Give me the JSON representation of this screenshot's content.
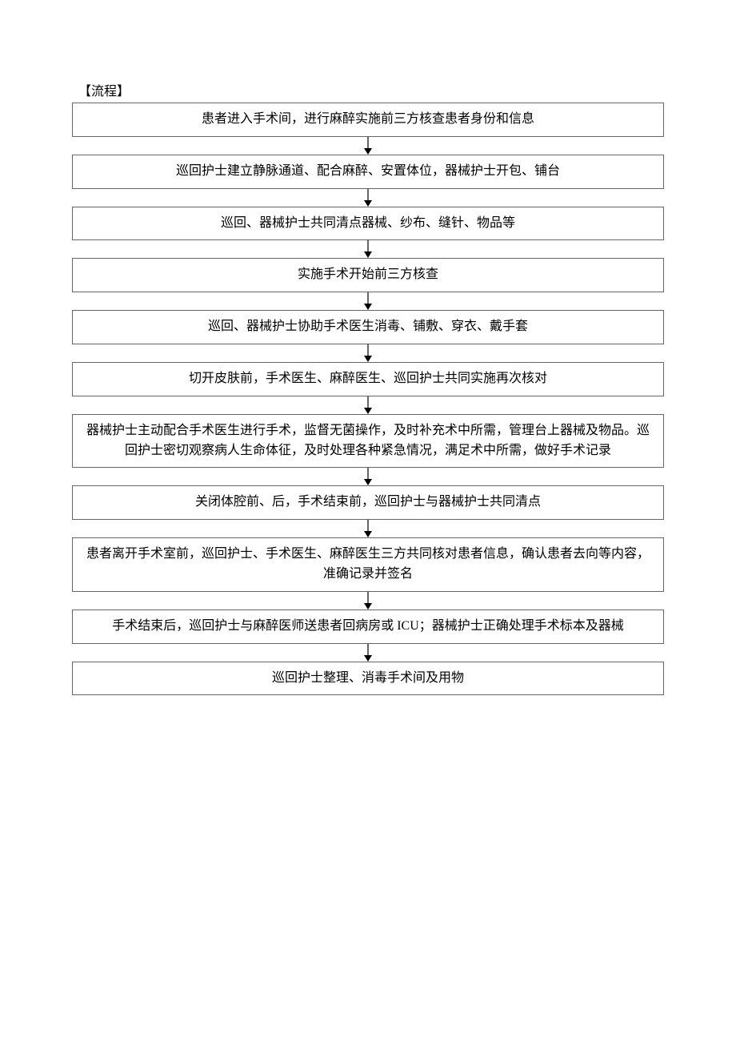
{
  "flowchart": {
    "type": "flowchart",
    "heading": "【流程】",
    "border_color": "#666666",
    "background_color": "#ffffff",
    "font_size": 16,
    "line_height": 1.55,
    "arrow_color": "#000000",
    "arrow_height": 22,
    "node_width_pct": 100,
    "nodes": [
      {
        "text": "患者进入手术间，进行麻醉实施前三方核查患者身份和信息"
      },
      {
        "text": "巡回护士建立静脉通道、配合麻醉、安置体位，器械护士开包、铺台"
      },
      {
        "text": "巡回、器械护士共同清点器械、纱布、缝针、物品等"
      },
      {
        "text": "实施手术开始前三方核查"
      },
      {
        "text": "巡回、器械护士协助手术医生消毒、铺敷、穿衣、戴手套"
      },
      {
        "text": "切开皮肤前，手术医生、麻醉医生、巡回护士共同实施再次核对"
      },
      {
        "text": "器械护士主动配合手术医生进行手术，监督无菌操作，及时补充术中所需，管理台上器械及物品。巡回护士密切观察病人生命体征，及时处理各种紧急情况，满足术中所需，做好手术记录"
      },
      {
        "text": "关闭体腔前、后，手术结束前，巡回护士与器械护士共同清点"
      },
      {
        "text": "患者离开手术室前，巡回护士、手术医生、麻醉医生三方共同核对患者信息，确认患者去向等内容，准确记录并签名"
      },
      {
        "text": "手术结束后，巡回护士与麻醉医师送患者回病房或 ICU；器械护士正确处理手术标本及器械"
      },
      {
        "text": "巡回护士整理、消毒手术间及用物"
      }
    ]
  }
}
